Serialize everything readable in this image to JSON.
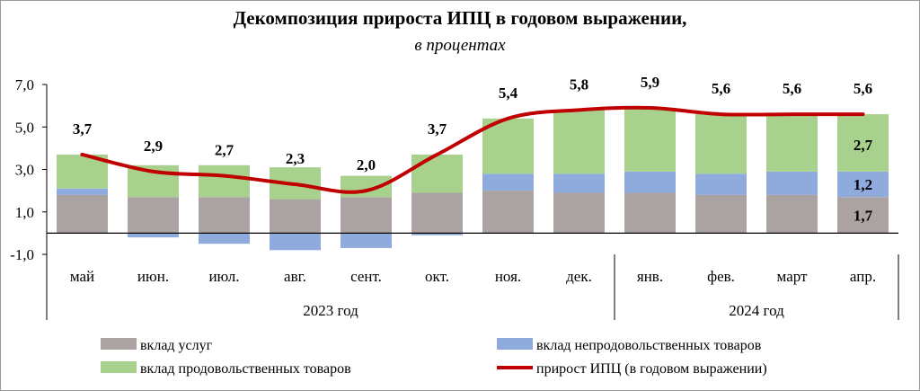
{
  "title": "Декомпозиция прироста ИПЦ  в годовом выражении,",
  "subtitle": "в процентах",
  "chart_data": {
    "type": "bar",
    "stacked": true,
    "title": "Декомпозиция прироста ИПЦ  в годовом выражении,",
    "subtitle": "в процентах",
    "categories": [
      "май",
      "июн.",
      "июл.",
      "авг.",
      "сент.",
      "окт.",
      "ноя.",
      "дек.",
      "янв.",
      "фев.",
      "март",
      "апр."
    ],
    "groups": [
      {
        "label": "2023 год",
        "start": 0,
        "end": 7
      },
      {
        "label": "2024 год",
        "start": 8,
        "end": 11
      }
    ],
    "ylim": [
      -1.0,
      7.0
    ],
    "yticks": [
      -1.0,
      1.0,
      3.0,
      5.0,
      7.0
    ],
    "ytick_labels": [
      "-1,0",
      "1,0",
      "3,0",
      "5,0",
      "7,0"
    ],
    "series": [
      {
        "name": "вклад услуг",
        "type": "bar",
        "color": "#aba3a1",
        "values": [
          1.8,
          1.7,
          1.7,
          1.6,
          1.7,
          1.9,
          2.0,
          1.9,
          1.9,
          1.8,
          1.8,
          1.7
        ]
      },
      {
        "name": "вклад непродовольственных товаров",
        "type": "bar",
        "color": "#8faadc",
        "values": [
          0.3,
          -0.2,
          -0.5,
          -0.8,
          -0.7,
          -0.1,
          0.8,
          0.9,
          1.0,
          1.0,
          1.1,
          1.2
        ]
      },
      {
        "name": "вклад продовольственных товаров",
        "type": "bar",
        "color": "#a9d18e",
        "values": [
          1.6,
          1.5,
          1.5,
          1.5,
          1.0,
          1.8,
          2.6,
          3.0,
          3.0,
          2.8,
          2.7,
          2.7
        ]
      },
      {
        "name": "прирост ИПЦ (в годовом выражении)",
        "type": "line",
        "color": "#c00000",
        "values": [
          3.7,
          2.9,
          2.7,
          2.3,
          2.0,
          3.7,
          5.4,
          5.8,
          5.9,
          5.6,
          5.6,
          5.6
        ]
      }
    ],
    "line_labels": [
      "3,7",
      "2,9",
      "2,7",
      "2,3",
      "2,0",
      "3,7",
      "5,4",
      "5,8",
      "5,9",
      "5,6",
      "5,6",
      "5,6"
    ],
    "bar_labels_last": {
      "services": "1,7",
      "nonfood": "1,2",
      "food": "2,7"
    },
    "legend": "bottom"
  }
}
